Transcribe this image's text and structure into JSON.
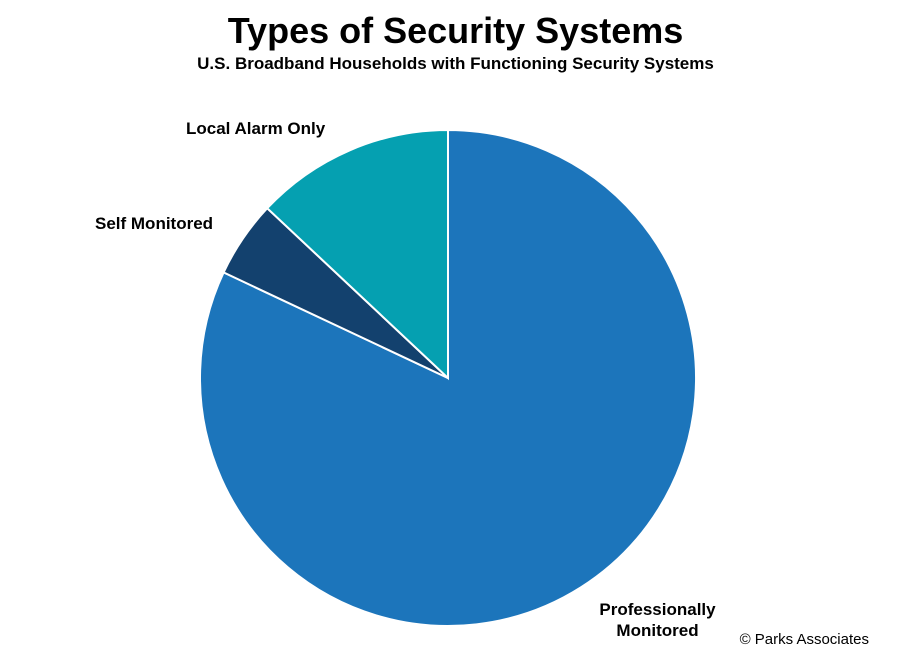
{
  "chart_data": {
    "type": "pie",
    "title": "Types of Security Systems",
    "subtitle": "U.S. Broadband Households with Functioning Security Systems",
    "categories": [
      "Professionally Monitored",
      "Self Monitored",
      "Local Alarm Only"
    ],
    "values": [
      82,
      5,
      13
    ],
    "colors": [
      "#1c75bb",
      "#13416e",
      "#05a0b1"
    ],
    "source": "© Parks Associates"
  }
}
